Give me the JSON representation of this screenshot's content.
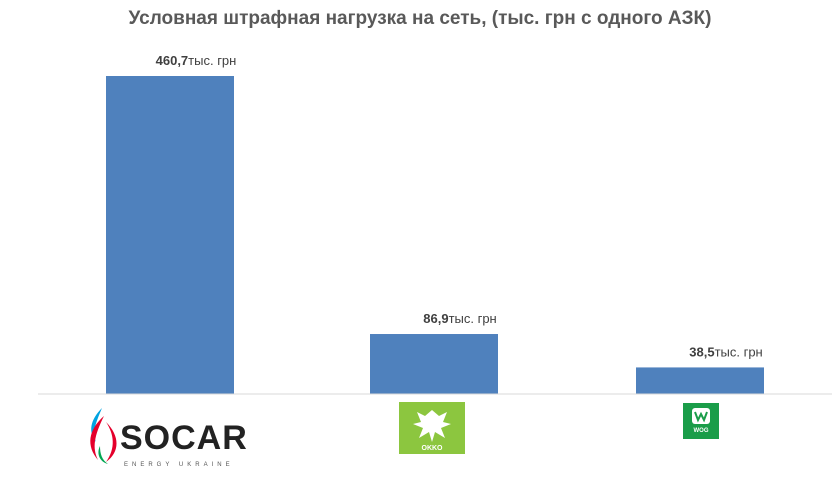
{
  "chart_data": {
    "type": "bar",
    "title": "Условная штрафная нагрузка на сеть, (тыс. грн с одного АЗК)",
    "categories": [
      "SOCAR",
      "OKKO",
      "WOG"
    ],
    "values": [
      460.7,
      86.9,
      38.5
    ],
    "value_labels": [
      "460,7",
      "86,9",
      "38,5"
    ],
    "unit_label": "тыс. грн",
    "ylim": [
      0,
      460.7
    ],
    "grid": false,
    "legend": "none",
    "bar_color": "#4f81bd",
    "axis_color": "#d9d9d9"
  },
  "logos": {
    "socar": {
      "word": "SOCAR",
      "sub": "ENERGY UKRAINE",
      "flame_colors": [
        "#00a3e0",
        "#e4002b",
        "#00a651"
      ]
    },
    "okko": {
      "word": "OKKO",
      "color": "#8cc63f"
    },
    "wog": {
      "word": "WOG",
      "color": "#1a9d49"
    }
  }
}
